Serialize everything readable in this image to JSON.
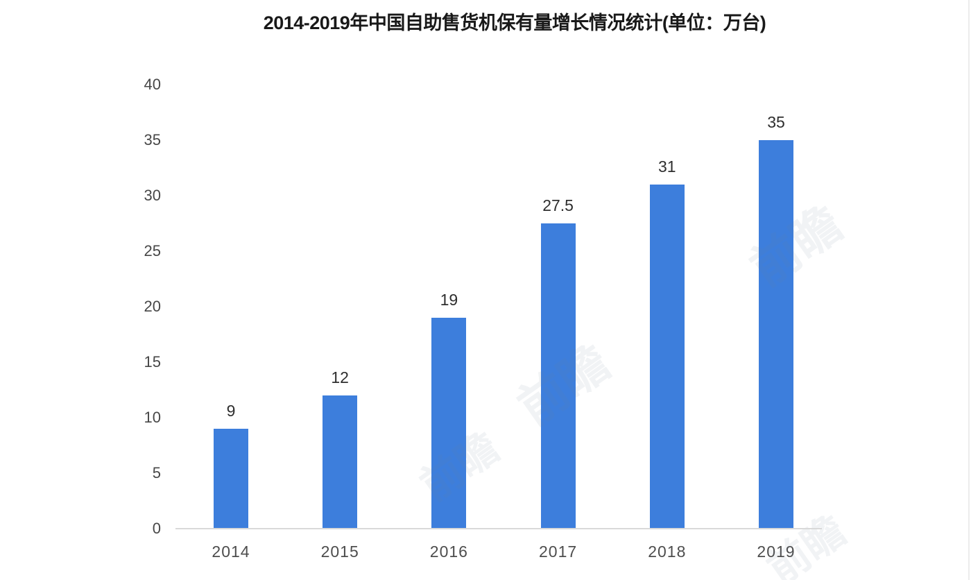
{
  "chart_data": {
    "type": "bar",
    "title": "2014-2019年中国自助售货机保有量增长情况统计(单位：万台)",
    "categories": [
      "2014",
      "2015",
      "2016",
      "2017",
      "2018",
      "2019"
    ],
    "values": [
      9,
      12,
      19,
      27.5,
      31,
      35
    ],
    "value_labels": [
      "9",
      "12",
      "19",
      "27.5",
      "31",
      "35"
    ],
    "unit": "万台",
    "xlabel": "",
    "ylabel": "",
    "ylim": [
      0,
      40
    ],
    "yticks": [
      0,
      5,
      10,
      15,
      20,
      25,
      30,
      35,
      40
    ],
    "grid": false,
    "legend_position": "none",
    "bar_color": "#3d7edc",
    "axis_line_color": "#d9d9d9",
    "y_tick_color": "#474747",
    "x_tick_color": "#4d4d4d",
    "value_label_color": "#2e2e2e",
    "title_color": "#191919",
    "background_color": "#ffffff"
  },
  "watermark": {
    "text": "前瞻"
  }
}
